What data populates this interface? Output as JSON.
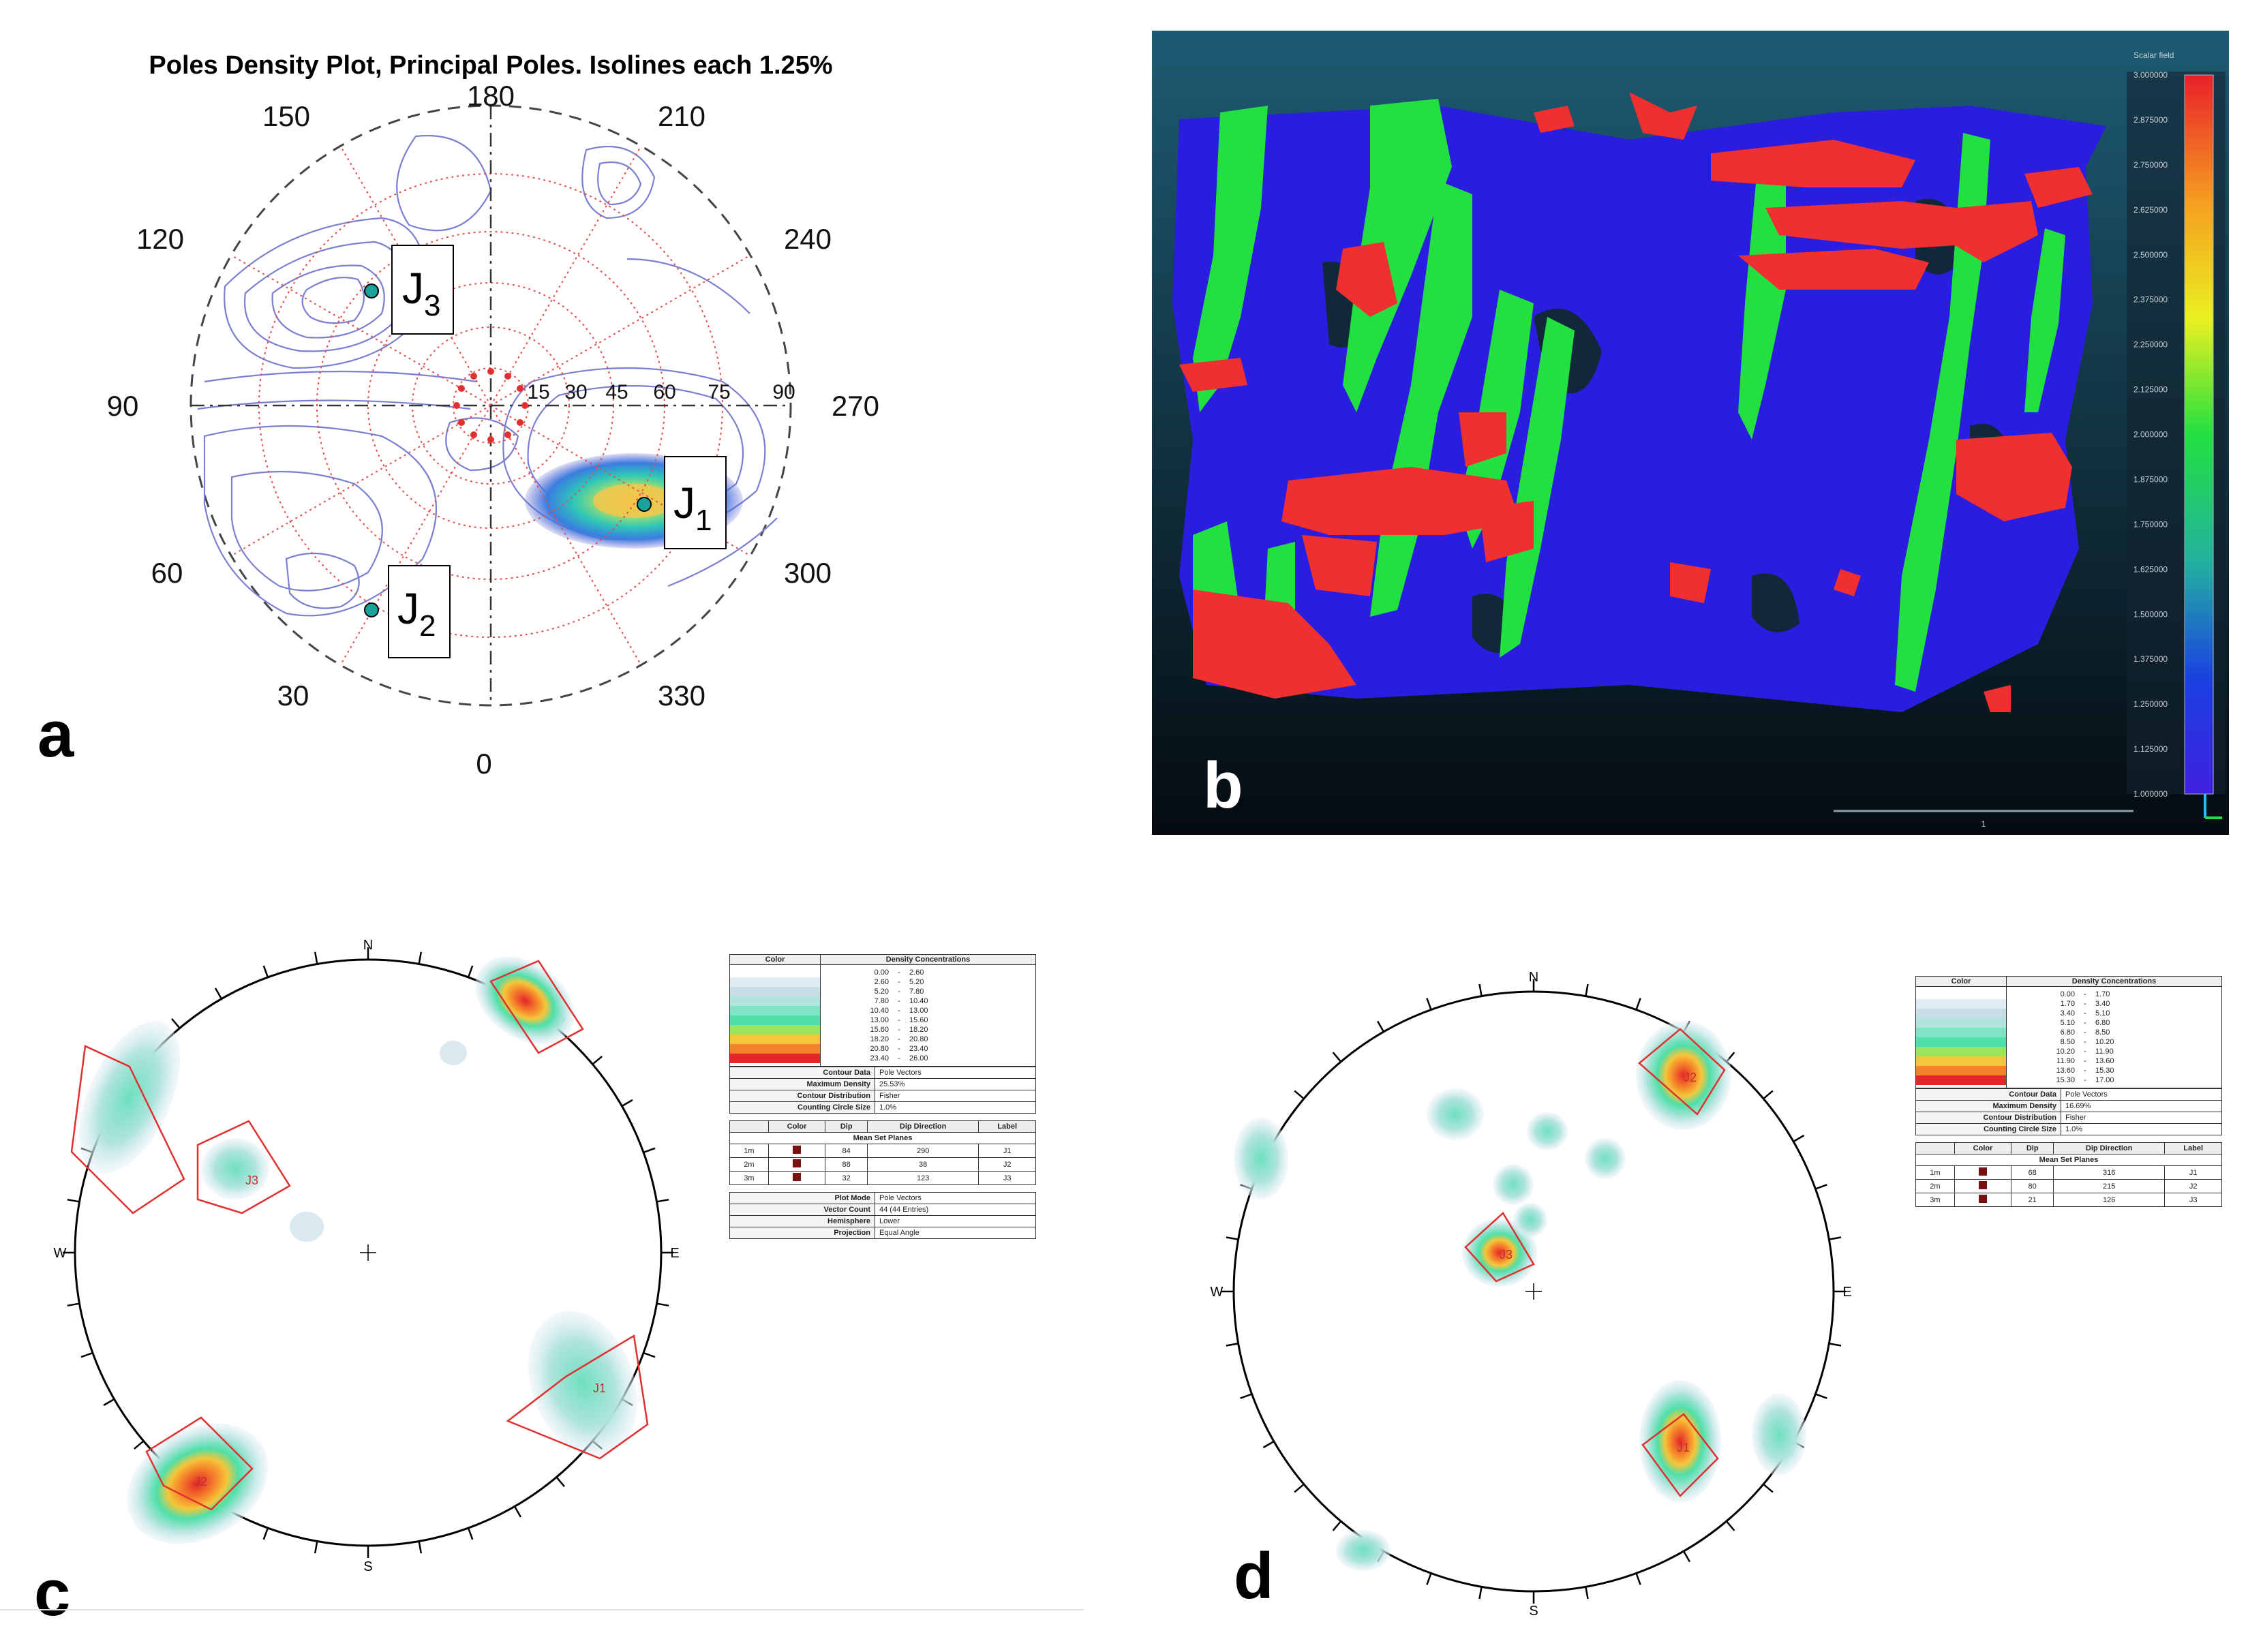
{
  "panel_a": {
    "letter": "a",
    "title": "Poles Density Plot, Principal Poles. Isolines each 1.25%",
    "azimuth_labels": [
      "180",
      "210",
      "240",
      "270",
      "300",
      "330",
      "0",
      "30",
      "60",
      "90",
      "120",
      "150"
    ],
    "dip_labels": [
      "15",
      "30",
      "45",
      "60",
      "75",
      "90"
    ],
    "poles": [
      {
        "label": "J",
        "sub": "1"
      },
      {
        "label": "J",
        "sub": "2"
      },
      {
        "label": "J",
        "sub": "3"
      }
    ],
    "colors": {
      "contour": "#7b7fd0",
      "grid": "#e05050",
      "pole": "#1aa39a"
    }
  },
  "panel_b": {
    "letter": "b",
    "legend_title": "Scalar field",
    "legend_ticks": [
      "3.000000",
      "2.875000",
      "2.750000",
      "2.625000",
      "2.500000",
      "2.375000",
      "2.250000",
      "2.125000",
      "2.000000",
      "1.875000",
      "1.750000",
      "1.625000",
      "1.500000",
      "1.375000",
      "1.250000",
      "1.125000",
      "1.000000"
    ],
    "scale_label": "1",
    "colors": {
      "set1": "#2b1de0",
      "set2": "#22e040",
      "set3": "#f03030",
      "background": "#0b1f2b"
    }
  },
  "panel_c": {
    "letter": "c",
    "compass": {
      "n": "N",
      "s": "S",
      "e": "E",
      "w": "W"
    },
    "set_labels": [
      "J1",
      "J2",
      "J3"
    ],
    "density_table": {
      "headers": [
        "Color",
        "Density Concentrations"
      ],
      "rows": [
        [
          "0.00",
          "-",
          "2.60"
        ],
        [
          "2.60",
          "-",
          "5.20"
        ],
        [
          "5.20",
          "-",
          "7.80"
        ],
        [
          "7.80",
          "-",
          "10.40"
        ],
        [
          "10.40",
          "-",
          "13.00"
        ],
        [
          "13.00",
          "-",
          "15.60"
        ],
        [
          "15.60",
          "-",
          "18.20"
        ],
        [
          "18.20",
          "-",
          "20.80"
        ],
        [
          "20.80",
          "-",
          "23.40"
        ],
        [
          "23.40",
          "-",
          "26.00"
        ]
      ],
      "swatches": [
        "#ffffff",
        "#e0ecf4",
        "#c7dde8",
        "#b0e4dc",
        "#7fe3c6",
        "#4fdfa8",
        "#9ce45c",
        "#f5c63a",
        "#f5822a",
        "#e3262a"
      ]
    },
    "info_table": [
      [
        "Contour Data",
        "Pole Vectors"
      ],
      [
        "Maximum Density",
        "25.53%"
      ],
      [
        "Contour Distribution",
        "Fisher"
      ],
      [
        "Counting Circle Size",
        "1.0%"
      ]
    ],
    "sets_table": {
      "headers": [
        "",
        "Color",
        "Dip",
        "Dip Direction",
        "Label"
      ],
      "subheader": "Mean Set Planes",
      "rows": [
        [
          "1m",
          "",
          "84",
          "290",
          "J1"
        ],
        [
          "2m",
          "",
          "88",
          "38",
          "J2"
        ],
        [
          "3m",
          "",
          "32",
          "123",
          "J3"
        ]
      ]
    },
    "plot_table": [
      [
        "Plot Mode",
        "Pole Vectors"
      ],
      [
        "Vector Count",
        "44 (44 Entries)"
      ],
      [
        "Hemisphere",
        "Lower"
      ],
      [
        "Projection",
        "Equal Angle"
      ]
    ]
  },
  "panel_d": {
    "letter": "d",
    "compass": {
      "n": "N",
      "s": "S",
      "e": "E",
      "w": "W"
    },
    "set_labels": [
      "J1",
      "J2",
      "J3"
    ],
    "density_table": {
      "headers": [
        "Color",
        "Density Concentrations"
      ],
      "rows": [
        [
          "0.00",
          "-",
          "1.70"
        ],
        [
          "1.70",
          "-",
          "3.40"
        ],
        [
          "3.40",
          "-",
          "5.10"
        ],
        [
          "5.10",
          "-",
          "6.80"
        ],
        [
          "6.80",
          "-",
          "8.50"
        ],
        [
          "8.50",
          "-",
          "10.20"
        ],
        [
          "10.20",
          "-",
          "11.90"
        ],
        [
          "11.90",
          "-",
          "13.60"
        ],
        [
          "13.60",
          "-",
          "15.30"
        ],
        [
          "15.30",
          "-",
          "17.00"
        ]
      ],
      "swatches": [
        "#ffffff",
        "#e0ecf4",
        "#c7dde8",
        "#b0e4dc",
        "#7fe3c6",
        "#4fdfa8",
        "#9ce45c",
        "#f5c63a",
        "#f5822a",
        "#e3262a"
      ]
    },
    "info_table": [
      [
        "Contour Data",
        "Pole Vectors"
      ],
      [
        "Maximum Density",
        "16.69%"
      ],
      [
        "Contour Distribution",
        "Fisher"
      ],
      [
        "Counting Circle Size",
        "1.0%"
      ]
    ],
    "sets_table": {
      "headers": [
        "",
        "Color",
        "Dip",
        "Dip Direction",
        "Label"
      ],
      "subheader": "Mean Set Planes",
      "rows": [
        [
          "1m",
          "",
          "68",
          "316",
          "J1"
        ],
        [
          "2m",
          "",
          "80",
          "215",
          "J2"
        ],
        [
          "3m",
          "",
          "21",
          "126",
          "J3"
        ]
      ]
    }
  }
}
